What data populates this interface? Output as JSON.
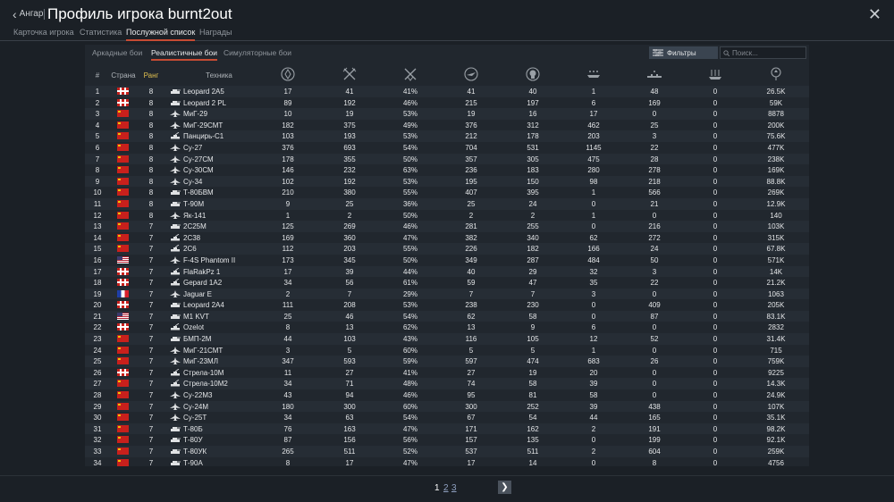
{
  "header": {
    "back_label": "Ангар",
    "title": "Профиль игрока burnt2out"
  },
  "tabs": [
    "Карточка игрока",
    "Статистика",
    "Послужной список",
    "Награды"
  ],
  "active_tab": 2,
  "modes": [
    "Аркадные бои",
    "Реалистичные бои",
    "Симуляторные бои"
  ],
  "active_mode": 1,
  "filters_label": "Фильтры",
  "search_placeholder": "Поиск...",
  "columns": {
    "num": "#",
    "country": "Страна",
    "rank": "Ранг",
    "vehicle": "Техника",
    "stat_icons": [
      "battles-icon",
      "ground-kills-icon",
      "win-rate-icon",
      "respawns-icon",
      "deaths-icon",
      "air-kills-icon",
      "ground-kills-icon-2",
      "naval-kills-icon",
      "experience-icon"
    ]
  },
  "colors": {
    "accent": "#c64b33",
    "rank": "#e0c050"
  },
  "rows": [
    {
      "num": "1",
      "country": "germany",
      "rank": "8",
      "type": "tank",
      "name": "Leopard 2A5",
      "v": [
        "17",
        "41",
        "41%",
        "41",
        "40",
        "1",
        "48",
        "0",
        "26.5K"
      ]
    },
    {
      "num": "2",
      "country": "germany",
      "rank": "8",
      "type": "tank",
      "name": "Leopard 2 PL",
      "v": [
        "89",
        "192",
        "46%",
        "215",
        "197",
        "6",
        "169",
        "0",
        "59K"
      ]
    },
    {
      "num": "3",
      "country": "ussr",
      "rank": "8",
      "type": "jet",
      "name": "МиГ-29",
      "v": [
        "10",
        "19",
        "53%",
        "19",
        "16",
        "17",
        "0",
        "0",
        "8878"
      ]
    },
    {
      "num": "4",
      "country": "ussr",
      "rank": "8",
      "type": "jet",
      "name": "МиГ-29СМТ",
      "v": [
        "182",
        "375",
        "49%",
        "376",
        "312",
        "462",
        "25",
        "0",
        "200K"
      ]
    },
    {
      "num": "5",
      "country": "ussr",
      "rank": "8",
      "type": "spaa",
      "name": "Панцирь-С1",
      "v": [
        "103",
        "193",
        "53%",
        "212",
        "178",
        "203",
        "3",
        "0",
        "75.6K"
      ]
    },
    {
      "num": "6",
      "country": "ussr",
      "rank": "8",
      "type": "jet",
      "name": "Су-27",
      "v": [
        "376",
        "693",
        "54%",
        "704",
        "531",
        "1145",
        "22",
        "0",
        "477K"
      ]
    },
    {
      "num": "7",
      "country": "ussr",
      "rank": "8",
      "type": "jet",
      "name": "Су-27СМ",
      "v": [
        "178",
        "355",
        "50%",
        "357",
        "305",
        "475",
        "28",
        "0",
        "238K"
      ]
    },
    {
      "num": "8",
      "country": "ussr",
      "rank": "8",
      "type": "jet",
      "name": "Су-30СМ",
      "v": [
        "146",
        "232",
        "63%",
        "236",
        "183",
        "280",
        "278",
        "0",
        "169K"
      ]
    },
    {
      "num": "9",
      "country": "ussr",
      "rank": "8",
      "type": "jet",
      "name": "Су-34",
      "v": [
        "102",
        "192",
        "53%",
        "195",
        "150",
        "98",
        "218",
        "0",
        "88.8K"
      ]
    },
    {
      "num": "10",
      "country": "ussr",
      "rank": "8",
      "type": "tank",
      "name": "Т-80БВМ",
      "v": [
        "210",
        "380",
        "55%",
        "407",
        "395",
        "1",
        "566",
        "0",
        "269K"
      ]
    },
    {
      "num": "11",
      "country": "ussr",
      "rank": "8",
      "type": "tank",
      "name": "Т-90М",
      "v": [
        "9",
        "25",
        "36%",
        "25",
        "24",
        "0",
        "21",
        "0",
        "12.9K"
      ]
    },
    {
      "num": "12",
      "country": "ussr",
      "rank": "8",
      "type": "jet",
      "name": "Як-141",
      "v": [
        "1",
        "2",
        "50%",
        "2",
        "2",
        "1",
        "0",
        "0",
        "140"
      ]
    },
    {
      "num": "13",
      "country": "ussr",
      "rank": "7",
      "type": "tank",
      "name": "2С25М",
      "v": [
        "125",
        "269",
        "46%",
        "281",
        "255",
        "0",
        "216",
        "0",
        "103K"
      ]
    },
    {
      "num": "14",
      "country": "ussr",
      "rank": "7",
      "type": "spaa",
      "name": "2С38",
      "v": [
        "169",
        "360",
        "47%",
        "382",
        "340",
        "62",
        "272",
        "0",
        "315K"
      ]
    },
    {
      "num": "15",
      "country": "ussr",
      "rank": "7",
      "type": "spaa",
      "name": "2С6",
      "v": [
        "112",
        "203",
        "55%",
        "226",
        "182",
        "166",
        "24",
        "0",
        "67.8K"
      ]
    },
    {
      "num": "16",
      "country": "usa",
      "rank": "7",
      "type": "jet",
      "name": "F-4S Phantom II",
      "v": [
        "173",
        "345",
        "50%",
        "349",
        "287",
        "484",
        "50",
        "0",
        "571K"
      ]
    },
    {
      "num": "17",
      "country": "germany",
      "rank": "7",
      "type": "spaa",
      "name": "FlaRakPz 1",
      "v": [
        "17",
        "39",
        "44%",
        "40",
        "29",
        "32",
        "3",
        "0",
        "14K"
      ]
    },
    {
      "num": "18",
      "country": "germany",
      "rank": "7",
      "type": "spaa",
      "name": "Gepard 1A2",
      "v": [
        "34",
        "56",
        "61%",
        "59",
        "47",
        "35",
        "22",
        "0",
        "21.2K"
      ]
    },
    {
      "num": "19",
      "country": "france",
      "rank": "7",
      "type": "jet",
      "name": "Jaguar E",
      "v": [
        "2",
        "7",
        "29%",
        "7",
        "7",
        "3",
        "0",
        "0",
        "1063"
      ]
    },
    {
      "num": "20",
      "country": "germany",
      "rank": "7",
      "type": "tank",
      "name": "Leopard 2A4",
      "v": [
        "111",
        "208",
        "53%",
        "238",
        "230",
        "0",
        "409",
        "0",
        "205K"
      ]
    },
    {
      "num": "21",
      "country": "usa",
      "rank": "7",
      "type": "tank",
      "name": "M1 KVT",
      "v": [
        "25",
        "46",
        "54%",
        "62",
        "58",
        "0",
        "87",
        "0",
        "83.1K"
      ]
    },
    {
      "num": "22",
      "country": "germany",
      "rank": "7",
      "type": "spaa",
      "name": "Ozelot",
      "v": [
        "8",
        "13",
        "62%",
        "13",
        "9",
        "6",
        "0",
        "0",
        "2832"
      ]
    },
    {
      "num": "23",
      "country": "ussr",
      "rank": "7",
      "type": "tank",
      "name": "БМП-2М",
      "v": [
        "44",
        "103",
        "43%",
        "116",
        "105",
        "12",
        "52",
        "0",
        "31.4K"
      ]
    },
    {
      "num": "24",
      "country": "ussr",
      "rank": "7",
      "type": "jet",
      "name": "МиГ-21СМТ",
      "v": [
        "3",
        "5",
        "60%",
        "5",
        "5",
        "1",
        "0",
        "0",
        "715"
      ]
    },
    {
      "num": "25",
      "country": "ussr",
      "rank": "7",
      "type": "jet",
      "name": "МиГ-23МЛ",
      "v": [
        "347",
        "593",
        "59%",
        "597",
        "474",
        "683",
        "26",
        "0",
        "759K"
      ]
    },
    {
      "num": "26",
      "country": "germany",
      "rank": "7",
      "type": "spaa",
      "name": "Стрела-10М",
      "v": [
        "11",
        "27",
        "41%",
        "27",
        "19",
        "20",
        "0",
        "0",
        "9225"
      ]
    },
    {
      "num": "27",
      "country": "ussr",
      "rank": "7",
      "type": "spaa",
      "name": "Стрела-10М2",
      "v": [
        "34",
        "71",
        "48%",
        "74",
        "58",
        "39",
        "0",
        "0",
        "14.3K"
      ]
    },
    {
      "num": "28",
      "country": "ussr",
      "rank": "7",
      "type": "jet",
      "name": "Су-22М3",
      "v": [
        "43",
        "94",
        "46%",
        "95",
        "81",
        "58",
        "0",
        "0",
        "24.9K"
      ]
    },
    {
      "num": "29",
      "country": "ussr",
      "rank": "7",
      "type": "jet",
      "name": "Су-24М",
      "v": [
        "180",
        "300",
        "60%",
        "300",
        "252",
        "39",
        "438",
        "0",
        "107K"
      ]
    },
    {
      "num": "30",
      "country": "ussr",
      "rank": "7",
      "type": "jet",
      "name": "Су-25Т",
      "v": [
        "34",
        "63",
        "54%",
        "67",
        "54",
        "44",
        "165",
        "0",
        "35.1K"
      ]
    },
    {
      "num": "31",
      "country": "ussr",
      "rank": "7",
      "type": "tank",
      "name": "Т-80Б",
      "v": [
        "76",
        "163",
        "47%",
        "171",
        "162",
        "2",
        "191",
        "0",
        "98.2K"
      ]
    },
    {
      "num": "32",
      "country": "ussr",
      "rank": "7",
      "type": "tank",
      "name": "Т-80У",
      "v": [
        "87",
        "156",
        "56%",
        "157",
        "135",
        "0",
        "199",
        "0",
        "92.1K"
      ]
    },
    {
      "num": "33",
      "country": "ussr",
      "rank": "7",
      "type": "tank",
      "name": "Т-80УК",
      "v": [
        "265",
        "511",
        "52%",
        "537",
        "511",
        "2",
        "604",
        "0",
        "259K"
      ]
    },
    {
      "num": "34",
      "country": "ussr",
      "rank": "7",
      "type": "tank",
      "name": "Т-90А",
      "v": [
        "8",
        "17",
        "47%",
        "17",
        "14",
        "0",
        "8",
        "0",
        "4756"
      ]
    }
  ],
  "pagination": {
    "pages": [
      "1",
      "2",
      "3"
    ],
    "current": 0
  }
}
